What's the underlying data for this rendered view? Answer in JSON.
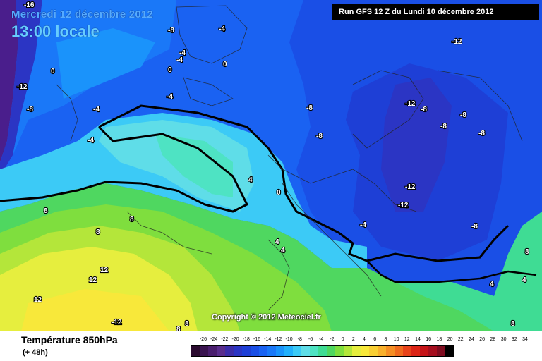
{
  "header": {
    "date": "Mercredi 12 décembre 2012",
    "time": "13:00 locale",
    "run": "Run GFS 12 Z du Lundi 10 décembre 2012"
  },
  "copyright": "Copyright © 2012 Meteociel.fr",
  "footer": {
    "variable": "Température 850hPa",
    "lead": "(+ 48h)"
  },
  "legend": {
    "values": [
      "-26",
      "-24",
      "-22",
      "-20",
      "-18",
      "-16",
      "-14",
      "-12",
      "-10",
      "-8",
      "-6",
      "-4",
      "-2",
      "0",
      "2",
      "4",
      "6",
      "8",
      "10",
      "12",
      "14",
      "16",
      "18",
      "20",
      "22",
      "24",
      "26",
      "28",
      "30",
      "32",
      "34"
    ],
    "colors": [
      "#2a0a2e",
      "#3a1450",
      "#4a1e6e",
      "#5a2d8c",
      "#3c2da8",
      "#2b35c4",
      "#1e3fd6",
      "#1a4fe6",
      "#1a62f2",
      "#1a78f8",
      "#1a93fb",
      "#22b0fc",
      "#3ccaf6",
      "#5fdde8",
      "#4ee3c3",
      "#3fdc94",
      "#4fd760",
      "#7fde3e",
      "#b4e63a",
      "#e6ee3e",
      "#f8e83a",
      "#f9cf34",
      "#f8b02c",
      "#f58e24",
      "#ef6a1e",
      "#e8431a",
      "#dc2416",
      "#c61418",
      "#a50e1e",
      "#7e0c20",
      "#000000"
    ]
  },
  "labels": [
    "-16",
    "-8",
    "-4",
    "0",
    "-4",
    "-4",
    "0",
    "-12",
    "-8",
    "0",
    "-4",
    "-8",
    "-4",
    "-4",
    "-8",
    "-12",
    "-8",
    "-8",
    "-12",
    "-8",
    "-8",
    "-12",
    "-12",
    "-4",
    "-8",
    "4",
    "0",
    "4",
    "4",
    "8",
    "8",
    "8",
    "12",
    "12",
    "12",
    "-12",
    "8",
    "8",
    "8",
    "4",
    "8",
    "4"
  ]
}
